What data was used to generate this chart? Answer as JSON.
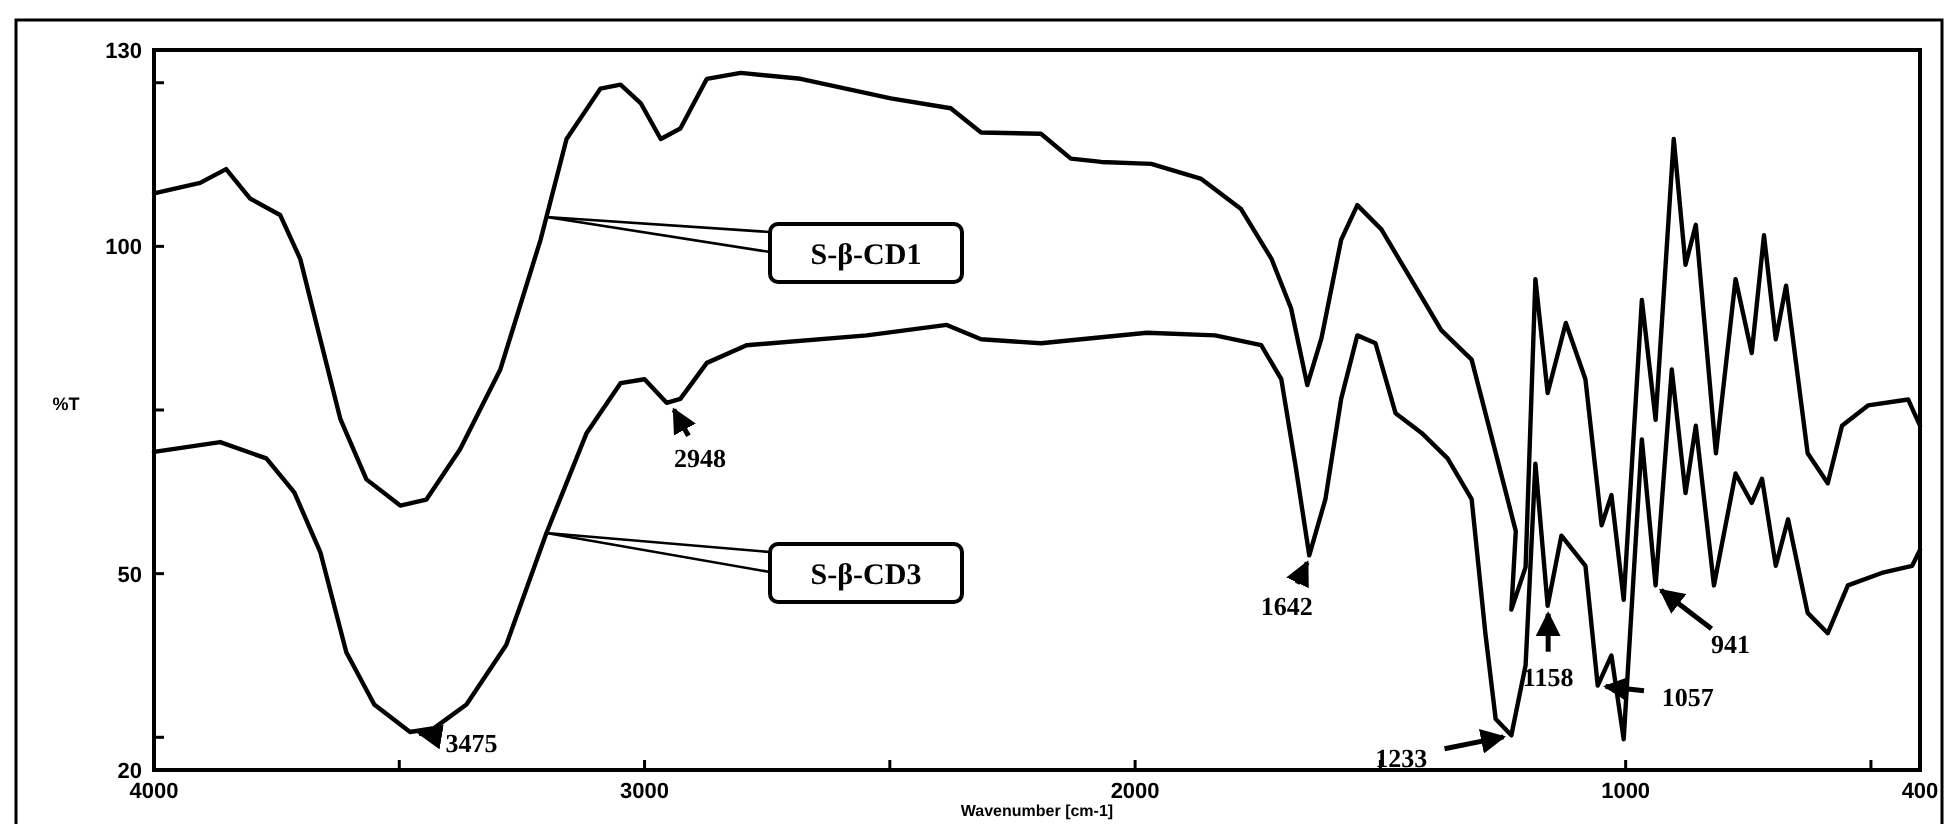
{
  "chart_data": {
    "type": "line",
    "xlabel": "Wavenumber [cm-1]",
    "ylabel": "%T",
    "xlim": [
      4000,
      400
    ],
    "ylim": [
      20,
      130
    ],
    "xticks": [
      4000,
      {
        "value": 3500,
        "label": null
      },
      3000,
      {
        "value": 2500,
        "label": null
      },
      2000,
      {
        "value": 1500,
        "label": null
      },
      1000,
      {
        "value": 500,
        "label": null
      },
      400
    ],
    "yticks": [
      20,
      {
        "value": 25,
        "label": null
      },
      50,
      {
        "value": 75,
        "label": null
      },
      100,
      {
        "value": 125,
        "label": null
      },
      130
    ],
    "grid": false,
    "marker": "none",
    "line_style": "solid",
    "series": [
      {
        "name": "S-β-CD1",
        "color": "#000000",
        "x": [
          4000,
          3906,
          3853,
          3804,
          3743,
          3702,
          3661,
          3620,
          3567,
          3498,
          3445,
          3376,
          3294,
          3212,
          3159,
          3090,
          3049,
          3008,
          2967,
          2927,
          2873,
          2804,
          2682,
          2498,
          2376,
          2314,
          2192,
          2131,
          2069,
          1967,
          1865,
          1784,
          1722,
          1682,
          1649,
          1620,
          1580,
          1547,
          1498,
          1437,
          1376,
          1314,
          1261,
          1224,
          1233,
          1204,
          1184,
          1159,
          1122,
          1082,
          1049,
          1029,
          1004,
          967,
          939,
          902,
          878,
          857,
          816,
          776,
          743,
          718,
          694,
          673,
          629,
          588,
          559,
          506,
          424,
          400
        ],
        "values": [
          108.1,
          109.7,
          111.8,
          107.3,
          104.8,
          98.1,
          85.8,
          73.6,
          64.4,
          60.4,
          61.3,
          69,
          81.2,
          101,
          116.4,
          124.1,
          124.7,
          121.9,
          116.4,
          118,
          125.6,
          126.5,
          125.6,
          122.6,
          121.1,
          117.4,
          117.2,
          113.4,
          112.9,
          112.6,
          110.3,
          105.7,
          98.1,
          90.5,
          78.8,
          86,
          101,
          106.3,
          102.6,
          94.9,
          87.2,
          82.7,
          67.3,
          56.5,
          44.5,
          51,
          95,
          77.6,
          88.3,
          79.7,
          57.4,
          62,
          46,
          91.8,
          73.5,
          116.4,
          97.2,
          103.3,
          68.4,
          95,
          83.7,
          101.7,
          85.8,
          94,
          68.4,
          63.8,
          72.6,
          75.7,
          76.6,
          72.6
        ]
      },
      {
        "name": "S-β-CD3",
        "color": "#000000",
        "x": [
          4000,
          3865,
          3771,
          3714,
          3661,
          3608,
          3551,
          3478,
          3429,
          3363,
          3282,
          3200,
          3118,
          3049,
          3000,
          2955,
          2927,
          2873,
          2792,
          2547,
          2384,
          2314,
          2192,
          1976,
          1837,
          1743,
          1702,
          1673,
          1645,
          1612,
          1580,
          1547,
          1510,
          1469,
          1416,
          1363,
          1314,
          1286,
          1265,
          1233,
          1204,
          1184,
          1159,
          1131,
          1082,
          1057,
          1029,
          1004,
          967,
          939,
          906,
          878,
          857,
          820,
          776,
          743,
          722,
          694,
          669,
          629,
          588,
          547,
          478,
          416,
          400
        ],
        "values": [
          68.6,
          70.1,
          67.6,
          62.4,
          53.3,
          38,
          30,
          25.8,
          26.4,
          30,
          39.1,
          56.2,
          71.5,
          79.1,
          79.7,
          76.1,
          76.7,
          82.2,
          84.9,
          86.4,
          88,
          85.8,
          85.2,
          86.8,
          86.4,
          84.9,
          79.7,
          66.5,
          52.8,
          61.4,
          76.7,
          86.4,
          85.2,
          74.5,
          71.5,
          67.6,
          61.4,
          40.9,
          27.8,
          25.3,
          36,
          66.8,
          45.1,
          55.8,
          51.2,
          32.9,
          37.5,
          24.7,
          70.5,
          48.2,
          81.2,
          62.3,
          72.6,
          48.2,
          65.3,
          60.8,
          64.5,
          51.2,
          58.3,
          44,
          40.9,
          48.2,
          50.1,
          51.2,
          53.6
        ]
      }
    ],
    "annotations": [
      {
        "text": "3475",
        "x": 3475,
        "y": 25.8
      },
      {
        "text": "2948",
        "x": 2948,
        "y": 76.1
      },
      {
        "text": "1642",
        "x": 1642,
        "y": 52.8
      },
      {
        "text": "1233",
        "x": 1233,
        "y": 25.3
      },
      {
        "text": "1158",
        "x": 1158,
        "y": 45.1
      },
      {
        "text": "1057",
        "x": 1057,
        "y": 32.9
      },
      {
        "text": "941",
        "x": 941,
        "y": 48.2
      }
    ]
  }
}
